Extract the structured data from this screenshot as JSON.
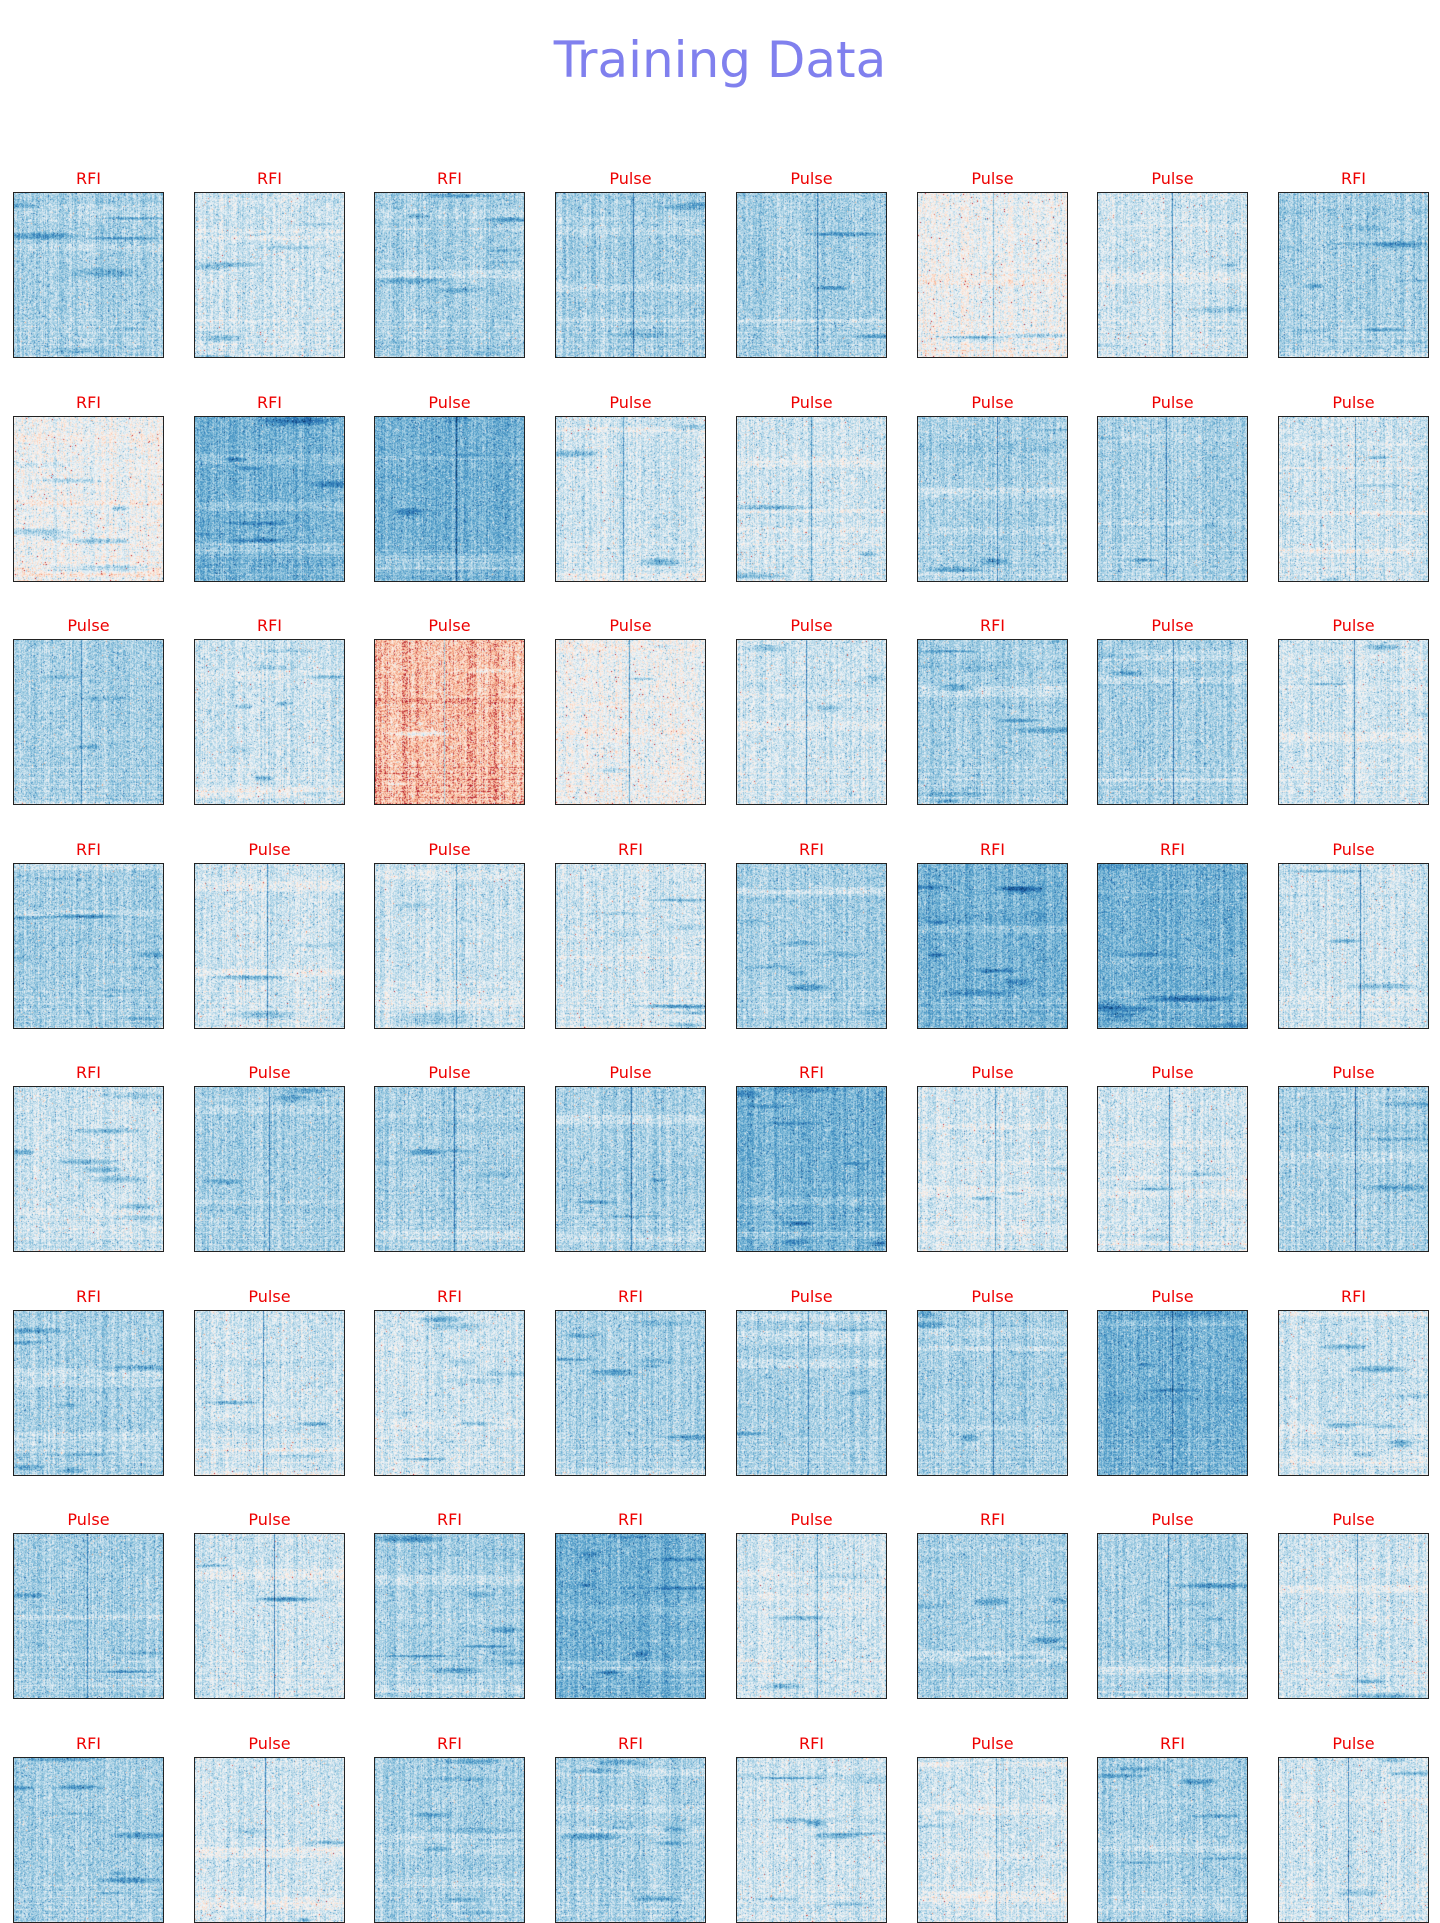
{
  "figure": {
    "title": "Training Data",
    "title_color": "#8080ee",
    "label_color": "#ee0000",
    "colormap": "RdBu_r",
    "rows": 8,
    "columns": 8
  },
  "panels": [
    {
      "label": "RFI",
      "tone": "mid"
    },
    {
      "label": "RFI",
      "tone": "light"
    },
    {
      "label": "RFI",
      "tone": "mid"
    },
    {
      "label": "Pulse",
      "tone": "mid"
    },
    {
      "label": "Pulse",
      "tone": "mid"
    },
    {
      "label": "Pulse",
      "tone": "neutral"
    },
    {
      "label": "Pulse",
      "tone": "light"
    },
    {
      "label": "RFI",
      "tone": "mid"
    },
    {
      "label": "RFI",
      "tone": "neutral"
    },
    {
      "label": "RFI",
      "tone": "dark"
    },
    {
      "label": "Pulse",
      "tone": "dark"
    },
    {
      "label": "Pulse",
      "tone": "light"
    },
    {
      "label": "Pulse",
      "tone": "light"
    },
    {
      "label": "Pulse",
      "tone": "mid"
    },
    {
      "label": "Pulse",
      "tone": "mid"
    },
    {
      "label": "Pulse",
      "tone": "light"
    },
    {
      "label": "Pulse",
      "tone": "mid"
    },
    {
      "label": "RFI",
      "tone": "light"
    },
    {
      "label": "Pulse",
      "tone": "red"
    },
    {
      "label": "Pulse",
      "tone": "neutral"
    },
    {
      "label": "Pulse",
      "tone": "light"
    },
    {
      "label": "RFI",
      "tone": "mid"
    },
    {
      "label": "Pulse",
      "tone": "mid"
    },
    {
      "label": "Pulse",
      "tone": "light"
    },
    {
      "label": "RFI",
      "tone": "mid"
    },
    {
      "label": "Pulse",
      "tone": "light"
    },
    {
      "label": "Pulse",
      "tone": "light"
    },
    {
      "label": "RFI",
      "tone": "light"
    },
    {
      "label": "RFI",
      "tone": "mid"
    },
    {
      "label": "RFI",
      "tone": "dark"
    },
    {
      "label": "RFI",
      "tone": "dark"
    },
    {
      "label": "Pulse",
      "tone": "light"
    },
    {
      "label": "RFI",
      "tone": "light"
    },
    {
      "label": "Pulse",
      "tone": "mid"
    },
    {
      "label": "Pulse",
      "tone": "mid"
    },
    {
      "label": "Pulse",
      "tone": "mid"
    },
    {
      "label": "RFI",
      "tone": "dark"
    },
    {
      "label": "Pulse",
      "tone": "light"
    },
    {
      "label": "Pulse",
      "tone": "light"
    },
    {
      "label": "Pulse",
      "tone": "mid"
    },
    {
      "label": "RFI",
      "tone": "mid"
    },
    {
      "label": "Pulse",
      "tone": "light"
    },
    {
      "label": "RFI",
      "tone": "light"
    },
    {
      "label": "RFI",
      "tone": "mid"
    },
    {
      "label": "Pulse",
      "tone": "mid"
    },
    {
      "label": "Pulse",
      "tone": "mid"
    },
    {
      "label": "Pulse",
      "tone": "dark"
    },
    {
      "label": "RFI",
      "tone": "light"
    },
    {
      "label": "Pulse",
      "tone": "mid"
    },
    {
      "label": "Pulse",
      "tone": "light"
    },
    {
      "label": "RFI",
      "tone": "mid"
    },
    {
      "label": "RFI",
      "tone": "dark"
    },
    {
      "label": "Pulse",
      "tone": "light"
    },
    {
      "label": "RFI",
      "tone": "mid"
    },
    {
      "label": "Pulse",
      "tone": "mid"
    },
    {
      "label": "Pulse",
      "tone": "light"
    },
    {
      "label": "RFI",
      "tone": "mid"
    },
    {
      "label": "Pulse",
      "tone": "light"
    },
    {
      "label": "RFI",
      "tone": "mid"
    },
    {
      "label": "RFI",
      "tone": "mid"
    },
    {
      "label": "RFI",
      "tone": "light"
    },
    {
      "label": "Pulse",
      "tone": "light"
    },
    {
      "label": "RFI",
      "tone": "mid"
    },
    {
      "label": "Pulse",
      "tone": "light"
    }
  ]
}
